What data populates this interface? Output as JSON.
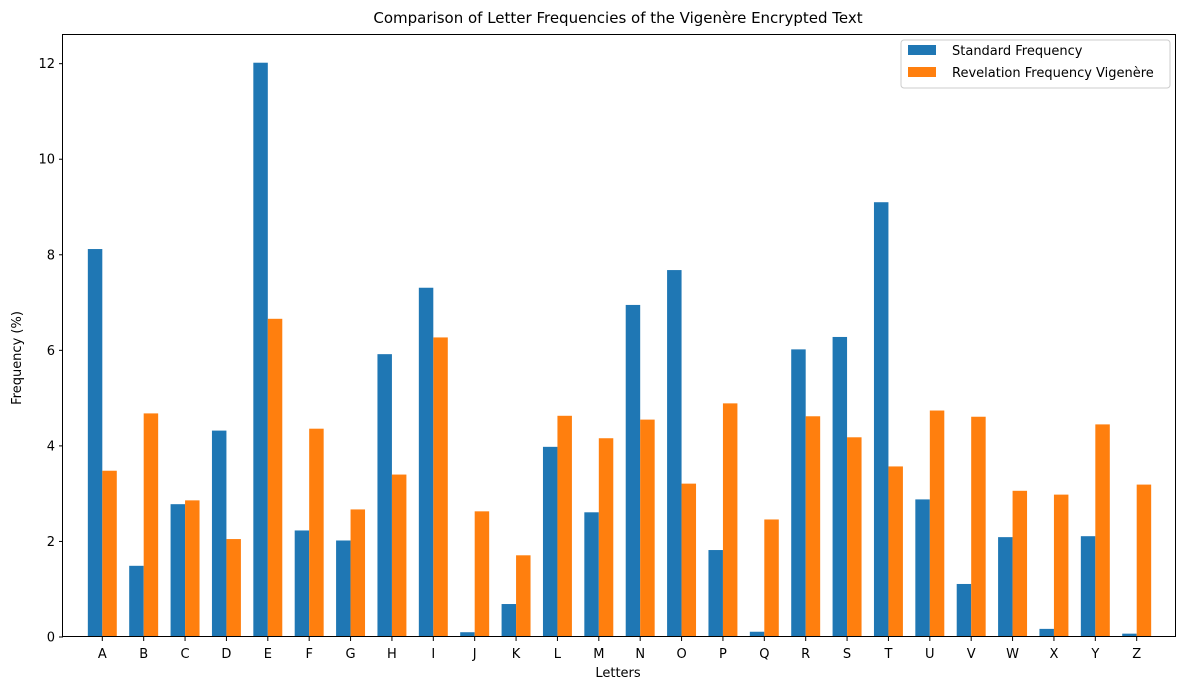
{
  "chart_data": {
    "type": "bar",
    "title": "Comparison of Letter Frequencies of the Vigenère Encrypted Text",
    "xlabel": "Letters",
    "ylabel": "Frequency (%)",
    "ylim": [
      0,
      12.6
    ],
    "yticks": [
      "0",
      "2",
      "4",
      "6",
      "8",
      "10",
      "12"
    ],
    "grid": false,
    "legend_position": "top-right",
    "categories": [
      "A",
      "B",
      "C",
      "D",
      "E",
      "F",
      "G",
      "H",
      "I",
      "J",
      "K",
      "L",
      "M",
      "N",
      "O",
      "P",
      "Q",
      "R",
      "S",
      "T",
      "U",
      "V",
      "W",
      "X",
      "Y",
      "Z"
    ],
    "series": [
      {
        "name": "Standard Frequency",
        "color": "#1f77b4",
        "values": [
          8.12,
          1.49,
          2.78,
          4.32,
          12.02,
          2.23,
          2.02,
          5.92,
          7.31,
          0.1,
          0.69,
          3.98,
          2.61,
          6.95,
          7.68,
          1.82,
          0.11,
          6.02,
          6.28,
          9.1,
          2.88,
          1.11,
          2.09,
          0.17,
          2.11,
          0.07
        ]
      },
      {
        "name": "Revelation Frequency Vigenère",
        "color": "#ff7f0e",
        "values": [
          3.48,
          4.68,
          2.86,
          2.05,
          6.66,
          4.36,
          2.67,
          3.4,
          6.27,
          2.63,
          1.71,
          4.63,
          4.16,
          4.55,
          3.21,
          4.89,
          2.46,
          4.62,
          4.18,
          3.57,
          4.74,
          4.61,
          3.06,
          2.98,
          4.45,
          3.19
        ]
      }
    ]
  }
}
